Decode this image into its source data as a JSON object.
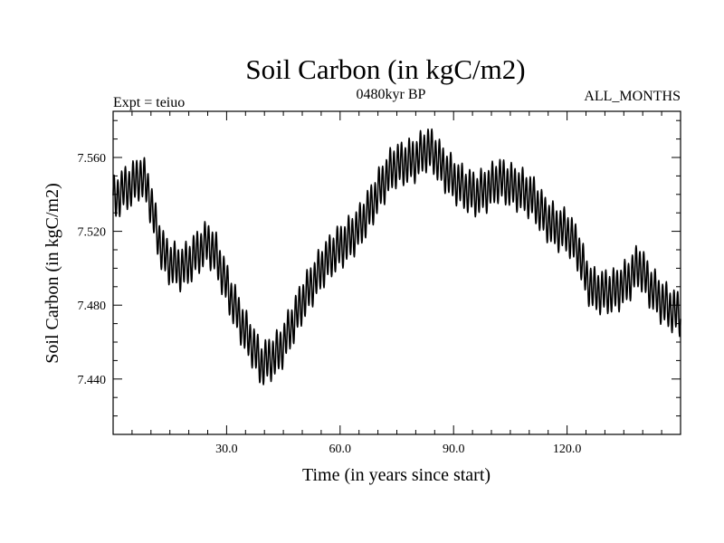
{
  "chart_data": {
    "type": "line",
    "title": "Soil Carbon (in kgC/m2)",
    "subtitle_left": "Expt = teiuo",
    "subtitle_center": "0480kyr BP",
    "subtitle_right": "ALL_MONTHS",
    "xlabel": "Time (in years since start)",
    "ylabel": "Soil Carbon (in kgC/m2)",
    "xlim": [
      0,
      150
    ],
    "ylim": [
      7.41,
      7.585
    ],
    "x_ticks": [
      30,
      60,
      90,
      120
    ],
    "x_tick_labels": [
      "30.0",
      "60.0",
      "90.0",
      "120.0"
    ],
    "y_ticks": [
      7.44,
      7.48,
      7.52,
      7.56
    ],
    "y_tick_labels": [
      "7.440",
      "7.480",
      "7.520",
      "7.560"
    ],
    "grid": false,
    "line_color": "#000000",
    "series": [
      {
        "x": [
          0,
          3,
          5,
          7,
          9,
          11,
          13,
          15,
          18,
          20,
          22,
          25,
          27,
          29,
          31,
          33,
          35,
          37,
          39,
          41,
          44,
          47,
          50,
          53,
          56,
          59,
          62,
          65,
          68,
          71,
          74,
          77,
          80,
          83,
          85,
          87,
          90,
          93,
          96,
          99,
          102,
          105,
          108,
          111,
          114,
          117,
          120,
          123,
          125,
          127,
          130,
          133,
          136,
          139,
          142,
          145,
          148,
          150
        ],
        "y": [
          7.537,
          7.543,
          7.545,
          7.55,
          7.545,
          7.525,
          7.509,
          7.503,
          7.5,
          7.503,
          7.508,
          7.514,
          7.508,
          7.497,
          7.485,
          7.475,
          7.465,
          7.458,
          7.448,
          7.45,
          7.455,
          7.468,
          7.482,
          7.493,
          7.503,
          7.51,
          7.515,
          7.522,
          7.533,
          7.545,
          7.555,
          7.557,
          7.559,
          7.565,
          7.562,
          7.555,
          7.548,
          7.543,
          7.54,
          7.543,
          7.548,
          7.545,
          7.542,
          7.538,
          7.528,
          7.522,
          7.52,
          7.51,
          7.495,
          7.488,
          7.487,
          7.488,
          7.493,
          7.502,
          7.49,
          7.482,
          7.477,
          7.475
        ]
      }
    ]
  }
}
